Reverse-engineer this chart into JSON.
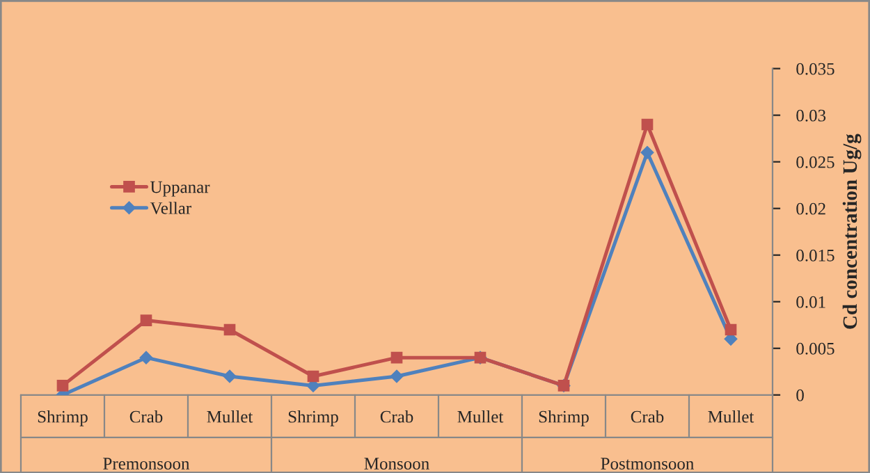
{
  "chart_data": {
    "type": "line",
    "ylabel": "Cd concentration Ug/g",
    "categories": [
      "Shrimp",
      "Crab",
      "Mullet",
      "Shrimp",
      "Crab",
      "Mullet",
      "Shrimp",
      "Crab",
      "Mullet"
    ],
    "annotations": [
      "Premonsoon",
      "Monsoon",
      "Postmonsoon"
    ],
    "series": [
      {
        "name": "Uppanar",
        "color": "#c0504d",
        "marker": "square",
        "values": [
          0.001,
          0.008,
          0.007,
          0.002,
          0.004,
          0.004,
          0.001,
          0.029,
          0.007
        ]
      },
      {
        "name": "Vellar",
        "color": "#4f81bd",
        "marker": "diamond",
        "values": [
          0,
          0.004,
          0.002,
          0.001,
          0.002,
          0.004,
          0.001,
          0.026,
          0.006
        ]
      }
    ],
    "ylim": [
      0,
      0.035
    ],
    "yticks": [
      0,
      0.005,
      0.01,
      0.015,
      0.02,
      0.025,
      0.03,
      0.035
    ],
    "legend": "left",
    "grid": false,
    "line_style": "solid"
  }
}
